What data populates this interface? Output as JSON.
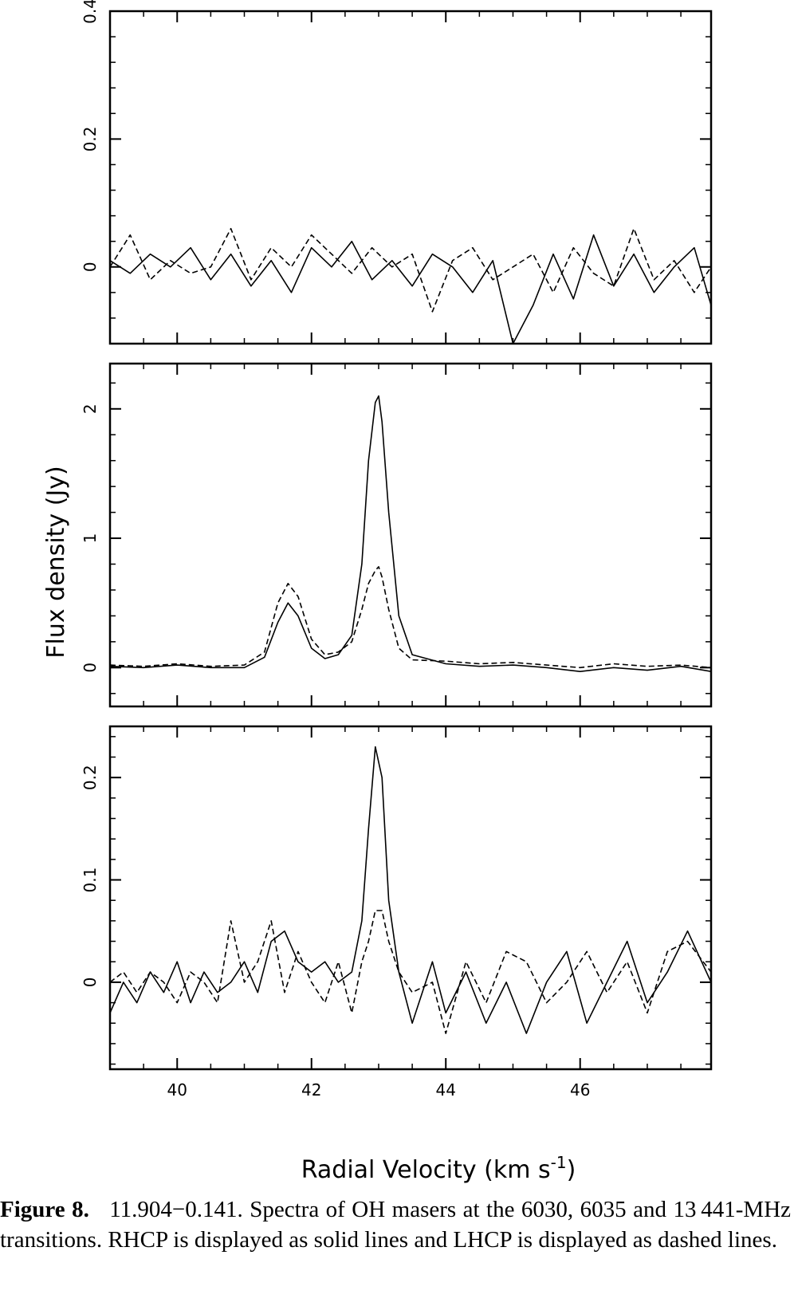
{
  "figure": {
    "y_axis_label": "Flux  density  (Jy)",
    "x_axis_label": "Radial  Velocity  (km s",
    "x_axis_label_sup": "-1",
    "x_axis_label_close": ")"
  },
  "caption": {
    "label": "Figure 8.",
    "text": "11.904−0.141. Spectra of OH masers at the 6030, 6035 and 13 441-MHz transitions. RHCP is displayed as solid lines and LHCP is displayed as dashed lines."
  },
  "chart_data": [
    {
      "type": "line",
      "transition": "6030 MHz",
      "xlim": [
        39.0,
        47.95
      ],
      "ylim": [
        -0.12,
        0.4
      ],
      "yticks": [
        0,
        0.2,
        0.4
      ],
      "ytick_labels": [
        "0",
        "0.2",
        "0.4"
      ],
      "xticks": [
        40,
        42,
        44,
        46
      ],
      "xtick_labels": [],
      "grid": false,
      "series": [
        {
          "style": "solid",
          "color": "#000000",
          "x": [
            39.0,
            39.3,
            39.6,
            39.9,
            40.2,
            40.5,
            40.8,
            41.1,
            41.4,
            41.7,
            42.0,
            42.3,
            42.6,
            42.9,
            43.2,
            43.5,
            43.8,
            44.1,
            44.4,
            44.7,
            45.0,
            45.3,
            45.6,
            45.9,
            46.2,
            46.5,
            46.8,
            47.1,
            47.4,
            47.7,
            47.95
          ],
          "y": [
            0.01,
            -0.01,
            0.02,
            0.0,
            0.03,
            -0.02,
            0.02,
            -0.03,
            0.01,
            -0.04,
            0.03,
            0.0,
            0.04,
            -0.02,
            0.01,
            -0.03,
            0.02,
            0.0,
            -0.04,
            0.01,
            -0.12,
            -0.06,
            0.02,
            -0.05,
            0.05,
            -0.03,
            0.02,
            -0.04,
            0.0,
            0.03,
            -0.06
          ]
        },
        {
          "style": "dashed",
          "color": "#000000",
          "x": [
            39.0,
            39.3,
            39.6,
            39.9,
            40.2,
            40.5,
            40.8,
            41.1,
            41.4,
            41.7,
            42.0,
            42.3,
            42.6,
            42.9,
            43.2,
            43.5,
            43.8,
            44.1,
            44.4,
            44.7,
            45.0,
            45.3,
            45.6,
            45.9,
            46.2,
            46.5,
            46.8,
            47.1,
            47.4,
            47.7,
            47.95
          ],
          "y": [
            0.0,
            0.05,
            -0.02,
            0.01,
            -0.01,
            0.0,
            0.06,
            -0.02,
            0.03,
            0.0,
            0.05,
            0.02,
            -0.01,
            0.03,
            0.0,
            0.02,
            -0.07,
            0.01,
            0.03,
            -0.02,
            0.0,
            0.02,
            -0.04,
            0.03,
            -0.01,
            -0.03,
            0.06,
            -0.02,
            0.01,
            -0.04,
            0.0
          ]
        }
      ]
    },
    {
      "type": "line",
      "transition": "6035 MHz",
      "xlim": [
        39.0,
        47.95
      ],
      "ylim": [
        -0.3,
        2.35
      ],
      "yticks": [
        0,
        1,
        2
      ],
      "ytick_labels": [
        "0",
        "1",
        "2"
      ],
      "xticks": [
        40,
        42,
        44,
        46
      ],
      "xtick_labels": [],
      "grid": false,
      "series": [
        {
          "style": "solid",
          "color": "#000000",
          "x": [
            39.0,
            39.5,
            40.0,
            40.5,
            41.0,
            41.3,
            41.5,
            41.65,
            41.8,
            42.0,
            42.2,
            42.4,
            42.6,
            42.75,
            42.85,
            42.95,
            43.0,
            43.05,
            43.15,
            43.3,
            43.5,
            44.0,
            44.5,
            45.0,
            45.5,
            46.0,
            46.5,
            47.0,
            47.5,
            47.95
          ],
          "y": [
            0.01,
            0.0,
            0.02,
            0.0,
            0.0,
            0.08,
            0.35,
            0.5,
            0.4,
            0.15,
            0.07,
            0.1,
            0.25,
            0.8,
            1.6,
            2.05,
            2.1,
            1.9,
            1.2,
            0.4,
            0.1,
            0.03,
            0.01,
            0.02,
            0.0,
            -0.03,
            0.0,
            -0.02,
            0.01,
            -0.03
          ]
        },
        {
          "style": "dashed",
          "color": "#000000",
          "x": [
            39.0,
            39.5,
            40.0,
            40.5,
            41.0,
            41.3,
            41.5,
            41.65,
            41.8,
            42.0,
            42.2,
            42.4,
            42.6,
            42.75,
            42.85,
            42.95,
            43.0,
            43.05,
            43.15,
            43.3,
            43.5,
            44.0,
            44.5,
            45.0,
            45.5,
            46.0,
            46.5,
            47.0,
            47.5,
            47.95
          ],
          "y": [
            0.02,
            0.01,
            0.03,
            0.01,
            0.02,
            0.12,
            0.5,
            0.65,
            0.55,
            0.22,
            0.1,
            0.12,
            0.2,
            0.45,
            0.65,
            0.75,
            0.78,
            0.7,
            0.45,
            0.15,
            0.06,
            0.05,
            0.03,
            0.04,
            0.02,
            0.0,
            0.03,
            0.01,
            0.02,
            0.0
          ]
        }
      ]
    },
    {
      "type": "line",
      "transition": "13441 MHz",
      "xlim": [
        39.0,
        47.95
      ],
      "ylim": [
        -0.085,
        0.25
      ],
      "yticks": [
        0,
        0.1,
        0.2
      ],
      "ytick_labels": [
        "0",
        "0.1",
        "0.2"
      ],
      "xticks": [
        40,
        42,
        44,
        46
      ],
      "xtick_labels": [
        "40",
        "42",
        "44",
        "46"
      ],
      "grid": false,
      "series": [
        {
          "style": "solid",
          "color": "#000000",
          "x": [
            39.0,
            39.2,
            39.4,
            39.6,
            39.8,
            40.0,
            40.2,
            40.4,
            40.6,
            40.8,
            41.0,
            41.2,
            41.4,
            41.6,
            41.8,
            42.0,
            42.2,
            42.4,
            42.6,
            42.75,
            42.85,
            42.95,
            43.05,
            43.15,
            43.3,
            43.5,
            43.8,
            44.0,
            44.3,
            44.6,
            44.9,
            45.2,
            45.5,
            45.8,
            46.1,
            46.4,
            46.7,
            47.0,
            47.3,
            47.6,
            47.95
          ],
          "y": [
            -0.03,
            0.0,
            -0.02,
            0.01,
            -0.01,
            0.02,
            -0.02,
            0.01,
            -0.01,
            0.0,
            0.02,
            -0.01,
            0.04,
            0.05,
            0.02,
            0.01,
            0.02,
            0.0,
            0.01,
            0.06,
            0.15,
            0.23,
            0.2,
            0.08,
            0.01,
            -0.04,
            0.02,
            -0.03,
            0.01,
            -0.04,
            0.0,
            -0.05,
            0.0,
            0.03,
            -0.04,
            0.0,
            0.04,
            -0.02,
            0.01,
            0.05,
            0.0
          ]
        },
        {
          "style": "dashed",
          "color": "#000000",
          "x": [
            39.0,
            39.2,
            39.4,
            39.6,
            39.8,
            40.0,
            40.2,
            40.4,
            40.6,
            40.8,
            41.0,
            41.2,
            41.4,
            41.6,
            41.8,
            42.0,
            42.2,
            42.4,
            42.6,
            42.75,
            42.85,
            42.95,
            43.05,
            43.15,
            43.3,
            43.5,
            43.8,
            44.0,
            44.3,
            44.6,
            44.9,
            45.2,
            45.5,
            45.8,
            46.1,
            46.4,
            46.7,
            47.0,
            47.3,
            47.6,
            47.95
          ],
          "y": [
            0.0,
            0.01,
            -0.01,
            0.01,
            0.0,
            -0.02,
            0.01,
            0.0,
            -0.02,
            0.06,
            0.0,
            0.02,
            0.06,
            -0.01,
            0.03,
            0.0,
            -0.02,
            0.02,
            -0.03,
            0.02,
            0.04,
            0.07,
            0.07,
            0.04,
            0.01,
            -0.01,
            0.0,
            -0.05,
            0.02,
            -0.02,
            0.03,
            0.02,
            -0.02,
            0.0,
            0.03,
            -0.01,
            0.02,
            -0.03,
            0.03,
            0.04,
            0.01
          ]
        }
      ]
    }
  ]
}
